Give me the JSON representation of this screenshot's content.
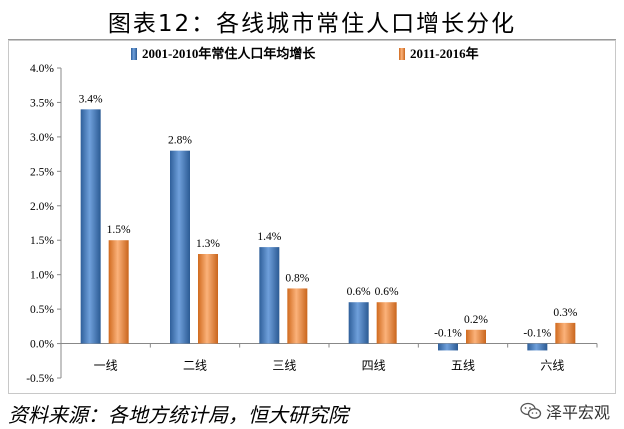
{
  "title": "图表12：各线城市常住人口增长分化",
  "source": "资料来源：各地方统计局，恒大研究院",
  "watermark": {
    "text": "泽平宏观",
    "icon": "wechat-icon"
  },
  "chart_data": {
    "type": "bar",
    "categories": [
      "一线",
      "二线",
      "三线",
      "四线",
      "五线",
      "六线"
    ],
    "series": [
      {
        "name": "2001-2010年常住人口年均增长",
        "values": [
          3.4,
          2.8,
          1.4,
          0.6,
          -0.1,
          -0.1
        ],
        "labels": [
          "3.4%",
          "2.8%",
          "1.4%",
          "0.6%",
          "-0.1%",
          "-0.1%"
        ],
        "color": "#4f81bd"
      },
      {
        "name": "2011-2016年",
        "values": [
          1.5,
          1.3,
          0.8,
          0.6,
          0.2,
          0.3
        ],
        "labels": [
          "1.5%",
          "1.3%",
          "0.8%",
          "0.6%",
          "0.2%",
          "0.3%"
        ],
        "color": "#f79646"
      }
    ],
    "ylim": [
      -0.5,
      4.0
    ],
    "yticks": [
      -0.5,
      0.0,
      0.5,
      1.0,
      1.5,
      2.0,
      2.5,
      3.0,
      3.5,
      4.0
    ],
    "ytick_labels": [
      "-0.5%",
      "0.0%",
      "0.5%",
      "1.0%",
      "1.5%",
      "2.0%",
      "2.5%",
      "3.0%",
      "3.5%",
      "4.0%"
    ],
    "legend": "top",
    "grid": false,
    "xlabel": "",
    "ylabel": ""
  }
}
